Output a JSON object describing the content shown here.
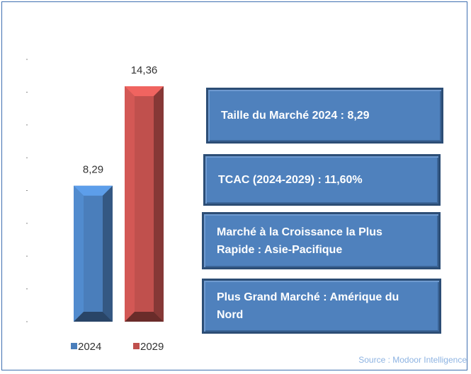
{
  "chart_data": {
    "type": "bar",
    "categories": [
      "2024",
      "2029"
    ],
    "values": [
      8.29,
      14.36
    ],
    "value_labels": [
      "8,29",
      "14,36"
    ],
    "colors": [
      "#4a7ebb",
      "#c0504d"
    ],
    "ylim": [
      0,
      16
    ],
    "yticks": [
      0,
      2,
      4,
      6,
      8,
      10,
      12,
      14,
      16
    ]
  },
  "info_boxes": [
    "Taille du Marché 2024 : 8,29",
    "TCAC (2024-2029) : 11,60%",
    "Marché à la Croissance la Plus Rapide : Asie-Pacifique",
    "Plus Grand Marché : Amérique du Nord"
  ],
  "source": "Source : Modoor Intelligence"
}
